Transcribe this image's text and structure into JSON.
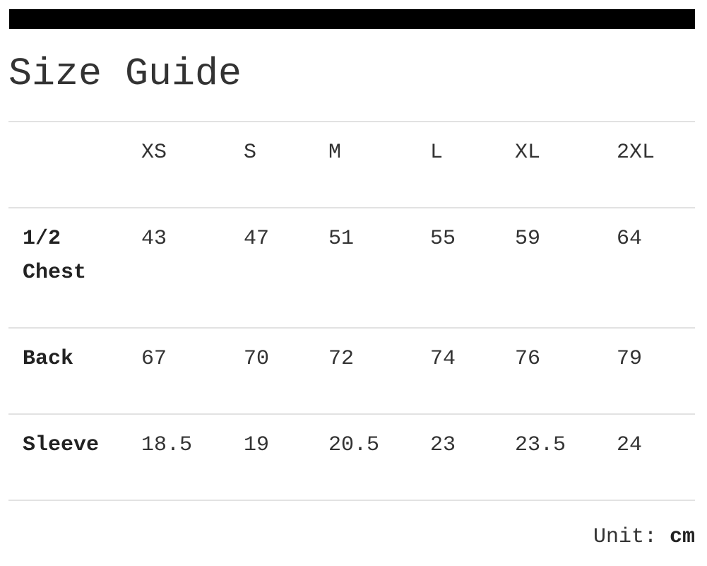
{
  "title": "Size Guide",
  "table": {
    "headers": [
      "",
      "XS",
      "S",
      "M",
      "L",
      "XL",
      "2XL"
    ],
    "rows": [
      {
        "label": "1/2 Chest",
        "values": [
          "43",
          "47",
          "51",
          "55",
          "59",
          "64"
        ]
      },
      {
        "label": "Back",
        "values": [
          "67",
          "70",
          "72",
          "74",
          "76",
          "79"
        ]
      },
      {
        "label": "Sleeve",
        "values": [
          "18.5",
          "19",
          "20.5",
          "23",
          "23.5",
          "24"
        ]
      }
    ]
  },
  "unit": {
    "label": "Unit:",
    "value": "cm"
  }
}
